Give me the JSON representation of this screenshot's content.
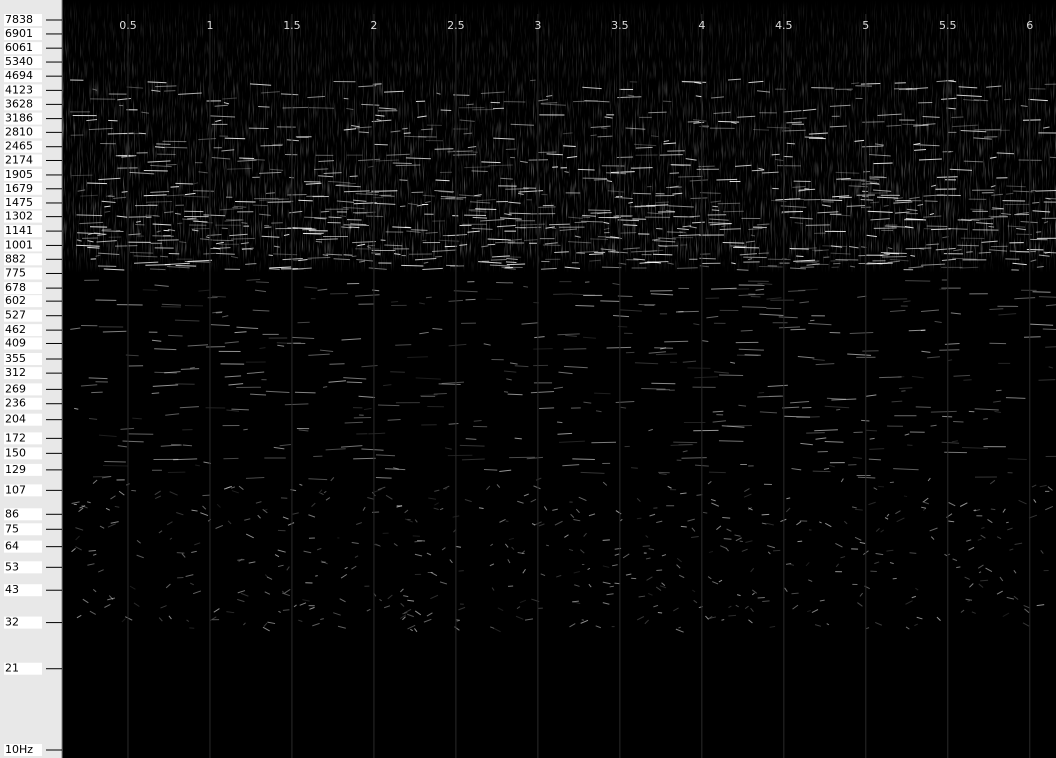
{
  "spectrogram": {
    "frequency_axis": {
      "scale": "log",
      "lim": [
        10,
        7838
      ],
      "ticks": [
        7838,
        6901,
        6061,
        5340,
        4694,
        4123,
        3628,
        3186,
        2810,
        2465,
        2174,
        1905,
        1679,
        1475,
        1302,
        1141,
        1001,
        882,
        775,
        678,
        602,
        527,
        462,
        409,
        355,
        312,
        269,
        236,
        204,
        172,
        150,
        129,
        107,
        86,
        75,
        64,
        53,
        43,
        32,
        21,
        {
          "value": 10,
          "label": "10Hz"
        }
      ]
    },
    "time_axis": {
      "lim": [
        0,
        6.16
      ],
      "ticks": [
        0.5,
        1,
        1.5,
        2,
        2.5,
        3,
        3.5,
        4,
        4.5,
        5,
        5.5,
        6
      ]
    }
  }
}
